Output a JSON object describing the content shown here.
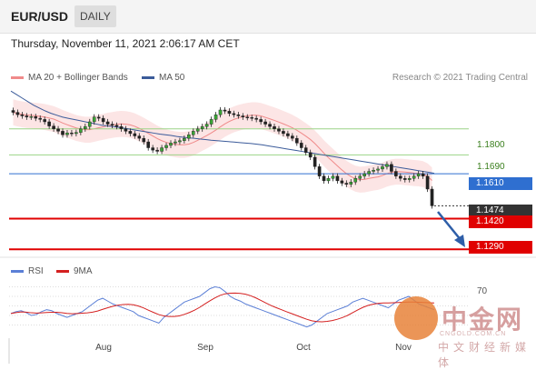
{
  "header": {
    "symbol": "EUR/USD",
    "timeframe": "DAILY"
  },
  "datetime": "Thursday, November 11, 2021 2:06:17 AM CET",
  "legend": {
    "ma20_label": "MA 20 + Bollinger Bands",
    "ma50_label": "MA 50",
    "credit": "Research © 2021 Trading Central",
    "ma20_color": "#f08a8a",
    "ma50_color": "#3b5b9a"
  },
  "rsi_legend": {
    "rsi_label": "RSI",
    "ma_label": "9MA",
    "rsi_color": "#5b7fd6",
    "ma_color": "#d42020"
  },
  "levels": {
    "r2": "1.1800",
    "r1": "1.1690",
    "pivot": "1.1610",
    "last": "1.1474",
    "s1": "1.1420",
    "s2": "1.1290",
    "rsi_upper": "70"
  },
  "colors": {
    "pivot": "#2f6fd0",
    "support": "#e00000",
    "resistance": "#9cd487",
    "last": "#333333",
    "arrow": "#2e5ea8"
  },
  "x_ticks": [
    "Aug",
    "Sep",
    "Oct",
    "Nov"
  ],
  "watermark": {
    "main": "中金网",
    "sub": "中文财经新媒体",
    "url": "CNGOLD.COM.CN"
  },
  "chart_data": {
    "type": "candlestick",
    "y_range": [
      1.126,
      1.193
    ],
    "x_labels": [
      "Aug",
      "Sep",
      "Oct",
      "Nov"
    ],
    "levels": [
      1.18,
      1.169,
      1.161,
      1.1474,
      1.142,
      1.129
    ],
    "closes": [
      1.187,
      1.186,
      1.1855,
      1.185,
      1.1852,
      1.1845,
      1.184,
      1.183,
      1.1812,
      1.18,
      1.179,
      1.1775,
      1.1783,
      1.178,
      1.1785,
      1.18,
      1.181,
      1.183,
      1.185,
      1.1845,
      1.183,
      1.182,
      1.1815,
      1.181,
      1.18,
      1.179,
      1.178,
      1.177,
      1.176,
      1.1745,
      1.172,
      1.171,
      1.1705,
      1.172,
      1.173,
      1.174,
      1.1745,
      1.175,
      1.176,
      1.1775,
      1.179,
      1.18,
      1.181,
      1.182,
      1.184,
      1.186,
      1.188,
      1.1875,
      1.1865,
      1.186,
      1.1855,
      1.185,
      1.1848,
      1.1845,
      1.184,
      1.183,
      1.182,
      1.181,
      1.18,
      1.179,
      1.178,
      1.177,
      1.176,
      1.174,
      1.172,
      1.17,
      1.168,
      1.164,
      1.16,
      1.158,
      1.159,
      1.16,
      1.158,
      1.157,
      1.1565,
      1.1575,
      1.159,
      1.16,
      1.161,
      1.162,
      1.1625,
      1.163,
      1.164,
      1.165,
      1.162,
      1.16,
      1.159,
      1.1585,
      1.159,
      1.16,
      1.161,
      1.16,
      1.1545,
      1.1474
    ],
    "ma50": [
      1.196,
      1.1945,
      1.193,
      1.1915,
      1.19,
      1.1888,
      1.1876,
      1.1866,
      1.1858,
      1.185,
      1.1845,
      1.184,
      1.1835,
      1.183,
      1.1825,
      1.182,
      1.1815,
      1.1812,
      1.1809,
      1.1806,
      1.1802,
      1.1798,
      1.1794,
      1.179,
      1.1786,
      1.1782,
      1.1778,
      1.1775,
      1.1772,
      1.1768,
      1.1765,
      1.1762,
      1.176,
      1.1757,
      1.1755,
      1.1752,
      1.175,
      1.1748,
      1.1746,
      1.1744,
      1.1742,
      1.174,
      1.1738,
      1.1735,
      1.1732,
      1.1728,
      1.1724,
      1.172,
      1.1716,
      1.1712,
      1.1708,
      1.1704,
      1.17,
      1.1696,
      1.1692,
      1.1688,
      1.1684,
      1.168,
      1.1676,
      1.1672,
      1.1668,
      1.1664,
      1.166,
      1.1656,
      1.1652,
      1.1648,
      1.1644,
      1.164,
      1.1636,
      1.1632,
      1.1628,
      1.1624,
      1.162,
      1.1616,
      1.1612
    ],
    "rsi": [
      42,
      44,
      45,
      43,
      40,
      41,
      44,
      46,
      45,
      42,
      40,
      38,
      40,
      42,
      44,
      48,
      52,
      56,
      58,
      55,
      52,
      50,
      48,
      46,
      44,
      40,
      38,
      36,
      34,
      32,
      38,
      42,
      46,
      50,
      54,
      56,
      58,
      60,
      64,
      68,
      70,
      69,
      65,
      60,
      57,
      55,
      52,
      50,
      48,
      46,
      44,
      42,
      40,
      38,
      36,
      34,
      32,
      30,
      28,
      30,
      34,
      38,
      42,
      44,
      46,
      48,
      50,
      54,
      56,
      58,
      56,
      54,
      52,
      50,
      48,
      52,
      56,
      58,
      60,
      56,
      52,
      50,
      48,
      46
    ]
  }
}
